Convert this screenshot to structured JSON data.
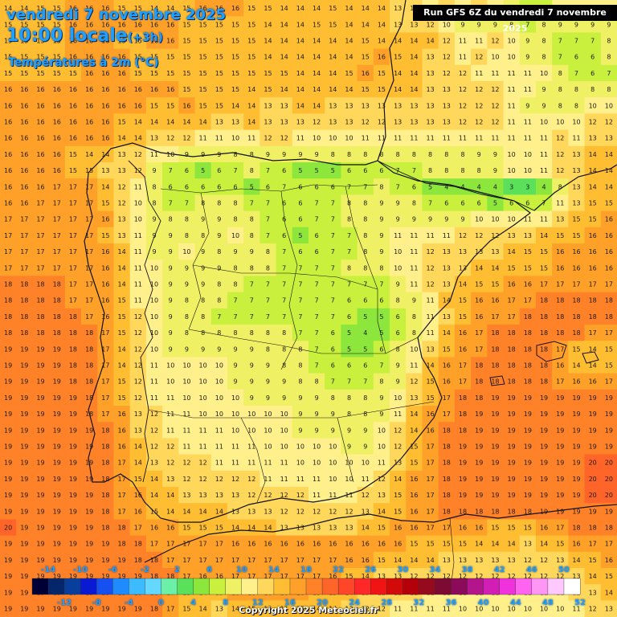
{
  "header": {
    "date": "vendredi 7 novembre 2025",
    "time": "10:00 locale",
    "offset": "(+3h)",
    "variable": "Températures à 2m (°C)"
  },
  "run_banner": "Run GFS 6Z du vendredi 7 novembre 2025",
  "copyright": "Copyright 2025 Meteociel.fr",
  "legend": {
    "top_labels": [
      "-14",
      "-10",
      "-6",
      "-2",
      "2",
      "6",
      "10",
      "14",
      "18",
      "22",
      "26",
      "30",
      "34",
      "38",
      "42",
      "46",
      "50"
    ],
    "bottom_labels": [
      "-12",
      "-8",
      "-4",
      "0",
      "4",
      "8",
      "12",
      "16",
      "20",
      "24",
      "28",
      "32",
      "36",
      "40",
      "44",
      "48",
      "52"
    ],
    "colors": [
      "#000036",
      "#06266b",
      "#0a3e9c",
      "#0a1ad2",
      "#1650f0",
      "#1e8cff",
      "#3cbcff",
      "#64d8ff",
      "#6cf0a8",
      "#5ae05a",
      "#8ce63c",
      "#c8f03c",
      "#f0f064",
      "#fff08c",
      "#ffd75a",
      "#ffbe32",
      "#ffa028",
      "#ff8228",
      "#ff6428",
      "#ff4628",
      "#ff2828",
      "#f01414",
      "#d20a0a",
      "#b4000a",
      "#960a1e",
      "#7d0a32",
      "#8c0a5a",
      "#b4148c",
      "#d21eb4",
      "#f032dc",
      "#ff64f0",
      "#ff96f5",
      "#ffc8ff",
      "#ffffff"
    ]
  },
  "map": {
    "rows": [
      "14 14 15 15 16 16 16 15 15 14 14 15 16 16 16 15 15 14 14 14 15 14 14 14 13 12 10 12 10 12 10 9 7 7 10 10 10 10",
      "15 15 15 15 16 16 16 16 16 16 16 15 15 15 15 15 14 14 14 15 15 14 14 14 13 13 12 10 9 9 9 8 7 8 9 9 9 9",
      "15 15 15 15 16 16 16 15 15 16 16 15 15 15 15 15 14 14 14 14 14 14 15 14 14 14 14 12 11 11 12 10 9 8 7 7 7 8",
      "15 15 15 15 16 16 16 16 15 15 15 15 15 15 15 15 14 14 14 14 14 14 15 16 15 14 13 12 11 12 10 10 9 8 7 6 6 8",
      "15 15 15 15 15 16 16 16 15 15 15 15 15 15 15 15 15 15 14 14 14 15 16 15 14 14 13 12 12 11 11 11 11 10 8 7 6 7",
      "16 16 16 16 16 16 16 16 16 16 16 15 15 15 15 14 15 14 14 14 14 14 15 15 14 14 13 13 12 12 12 11 11 9 8 8 8 8",
      "16 16 16 16 16 16 16 16 16 15 15 16 15 15 14 14 13 13 14 14 13 13 13 13 13 13 13 13 12 12 12 11 9 9 8 8 10 10",
      "16 16 16 16 16 16 16 15 14 14 14 14 14 13 13 14 13 13 13 12 13 13 12 12 13 13 13 13 12 12 12 11 11 10 10 10 12 12",
      "16 16 16 16 16 16 16 14 14 13 12 12 11 11 10 11 12 12 11 10 10 10 11 11 11 11 11 11 11 11 11 11 11 11 12 11 13 13",
      "16 16 16 16 15 14 14 13 12 11 10 9 9 9 8 8 9 9 9 9 8 8 8 8 8 8 8 8 8 9 9 10 10 11 12 13 14 14",
      "16 16 16 16 15 15 13 13 12 9 7 6 5 6 7 8 7 6 5 5 5 6 6 6 7 7 8 8 8 8 9 10 10 11 12 13 14 14",
      "16 16 16 17 17 17 14 12 11 8 6 6 6 6 6 5 6 7 6 6 6 7 7 8 7 6 5 4 4 4 4 3 3 4 8 13 14 14",
      "16 16 17 17 17 17 15 12 10 8 7 7 8 8 8 7 7 6 6 7 7 8 8 9 9 8 7 6 6 6 5 6 6 7 11 13 15 15",
      "17 17 17 17 17 17 16 13 10 9 8 8 9 9 8 8 7 6 6 7 7 8 8 9 9 9 9 9 9 10 10 10 11 11 13 15 15 16",
      "17 17 17 17 17 17 15 13 11 9 9 8 8 9 10 8 7 6 5 6 7 7 8 9 11 11 11 11 12 12 12 13 13 14 15 15 16 16",
      "17 17 17 17 17 17 16 14 11 9 9 10 9 8 9 9 8 7 6 6 7 7 8 9 10 11 12 13 13 13 13 14 15 15 16 16 16 16",
      "17 17 17 17 17 17 16 14 11 10 9 9 9 9 8 8 8 7 7 7 7 8 8 8 10 11 12 13 13 14 14 15 15 15 16 16 16 16",
      "18 18 18 18 17 17 16 14 11 10 9 9 9 8 8 7 7 7 7 7 7 7 7 7 9 11 12 13 14 15 15 16 16 17 17 17 17 17",
      "18 18 18 18 17 17 16 15 11 10 9 8 8 8 7 7 7 7 7 7 7 6 6 6 8 9 11 14 15 16 16 17 17 18 18 18 18 18",
      "18 18 18 18 18 17 16 15 12 10 9 8 8 7 7 7 7 7 7 7 7 6 5 5 6 8 11 13 15 16 17 17 18 18 18 18 18 18",
      "18 18 18 18 18 18 17 15 12 10 9 8 8 8 8 8 8 8 7 7 6 5 4 5 6 8 11 14 16 17 18 18 18 18 18 18 17 17",
      "19 19 19 19 18 18 17 14 12 10 9 9 9 9 9 9 8 8 8 7 6 5 5 6 8 10 13 15 16 17 18 18 18 18 17 15 14 15",
      "19 19 19 19 18 18 17 14 12 11 10 10 10 10 9 9 9 8 8 7 6 6 6 7 9 11 14 16 17 18 18 18 18 18 16 14 14 15",
      "19 19 19 19 18 18 17 15 12 11 10 10 10 10 9 9 9 9 8 8 7 7 7 8 9 12 15 16 17 18 18 18 18 18 17 16 16 17",
      "19 19 19 19 19 18 17 15 12 11 11 10 10 10 10 9 9 9 9 9 8 8 8 9 10 13 15 17 18 18 19 19 19 19 19 19 19 19",
      "19 19 19 19 19 18 17 16 13 12 11 11 10 10 10 10 10 10 9 9 9 8 8 9 11 14 16 17 18 19 19 19 19 19 19 19 19 19",
      "19 19 19 19 19 19 18 16 13 12 11 11 11 11 10 10 10 10 9 9 9 9 9 10 12 14 16 18 18 19 19 19 19 19 19 19 19 19",
      "19 19 19 19 19 19 18 16 14 12 12 11 11 11 11 11 10 10 10 10 10 9 9 10 12 15 17 18 19 19 19 19 19 19 19 19 19 19",
      "19 19 19 19 19 19 18 17 14 13 12 12 12 11 11 11 11 11 10 10 10 10 10 11 13 15 17 18 19 19 19 19 19 19 19 19 20 20",
      "19 19 19 19 19 19 18 17 15 14 13 12 12 12 12 12 11 11 11 11 10 10 11 12 14 16 17 18 19 19 19 19 19 19 19 19 20 20",
      "19 19 19 19 19 19 18 17 16 14 14 13 13 13 13 12 12 12 12 11 11 11 12 13 15 16 17 18 19 19 19 19 19 19 19 19 20 20",
      "19 19 19 19 19 19 18 17 16 15 14 14 14 14 13 13 13 12 12 12 12 12 13 14 15 16 17 18 18 18 18 18 18 19 19 19 19 19",
      "20 19 19 19 19 19 18 18 17 16 16 15 15 15 14 14 14 13 13 13 13 13 14 15 16 16 17 17 16 16 15 15 15 16 17 18 18 18",
      "19 19 19 19 19 19 19 18 18 17 17 17 17 17 16 16 16 16 16 16 16 16 16 16 16 15 15 15 15 14 14 14 13 14 15 16 17 17",
      "19 19 19 19 19 19 19 19 18 18 17 17 17 17 17 17 17 17 17 17 17 16 16 15 14 14 14 13 13 13 13 13 12 12 13 14 15 16",
      "19 19 19 19 19 19 19 19 19 18 18 17 16 16 17 17 17 17 17 17 16 15 14 13 13 12 12 12 12 12 12 12 12 12 12 13 14 15",
      "19 19 19 19 19 19 19 19 19 18 17 15 14 15 16 16 16 16 16 15 15 14 13 12 12 12 11 11 11 11 11 11 11 11 11 12 13 14",
      "19 19 19 19 19 19 19 19 19 18 17 15 14 13 14 15 15 15 15 14 14 13 12 12 11 11 11 11 10 10 10 10 10 10 10 11 12 13"
    ]
  }
}
